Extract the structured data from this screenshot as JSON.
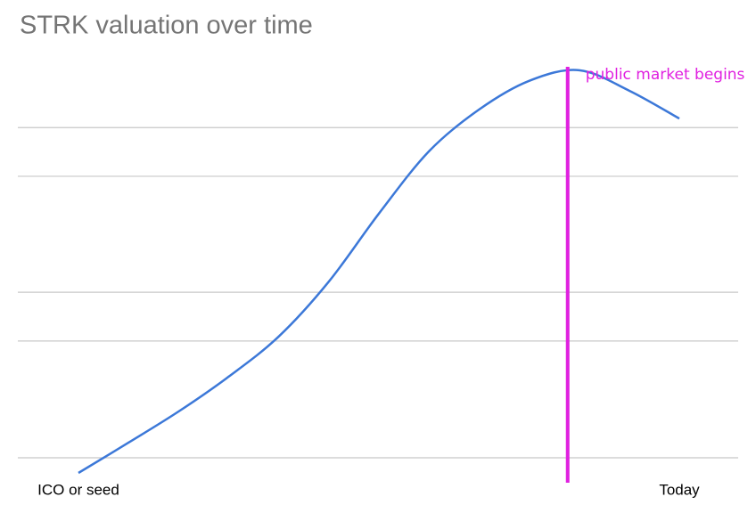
{
  "chart_data": {
    "type": "line",
    "title": "STRK valuation over time",
    "categories": [
      "ICO or seed",
      null,
      null,
      null,
      null,
      null,
      null,
      null,
      null,
      null,
      null,
      null,
      "Today"
    ],
    "series": [
      {
        "color": "#3c78d8",
        "values": [
          0,
          7.4,
          15,
          23.5,
          33.3,
          46.7,
          63.3,
          78.5,
          88.7,
          95.7,
          98.3,
          93.3,
          86.5
        ]
      }
    ],
    "ylim": [
      0,
      100
    ],
    "yticks": [
      3.7,
      32.2,
      44.1,
      72.4,
      84.3
    ],
    "grid": true,
    "marker": {
      "label": "public market begins",
      "x": 9.77,
      "color": "#e020e0"
    }
  }
}
